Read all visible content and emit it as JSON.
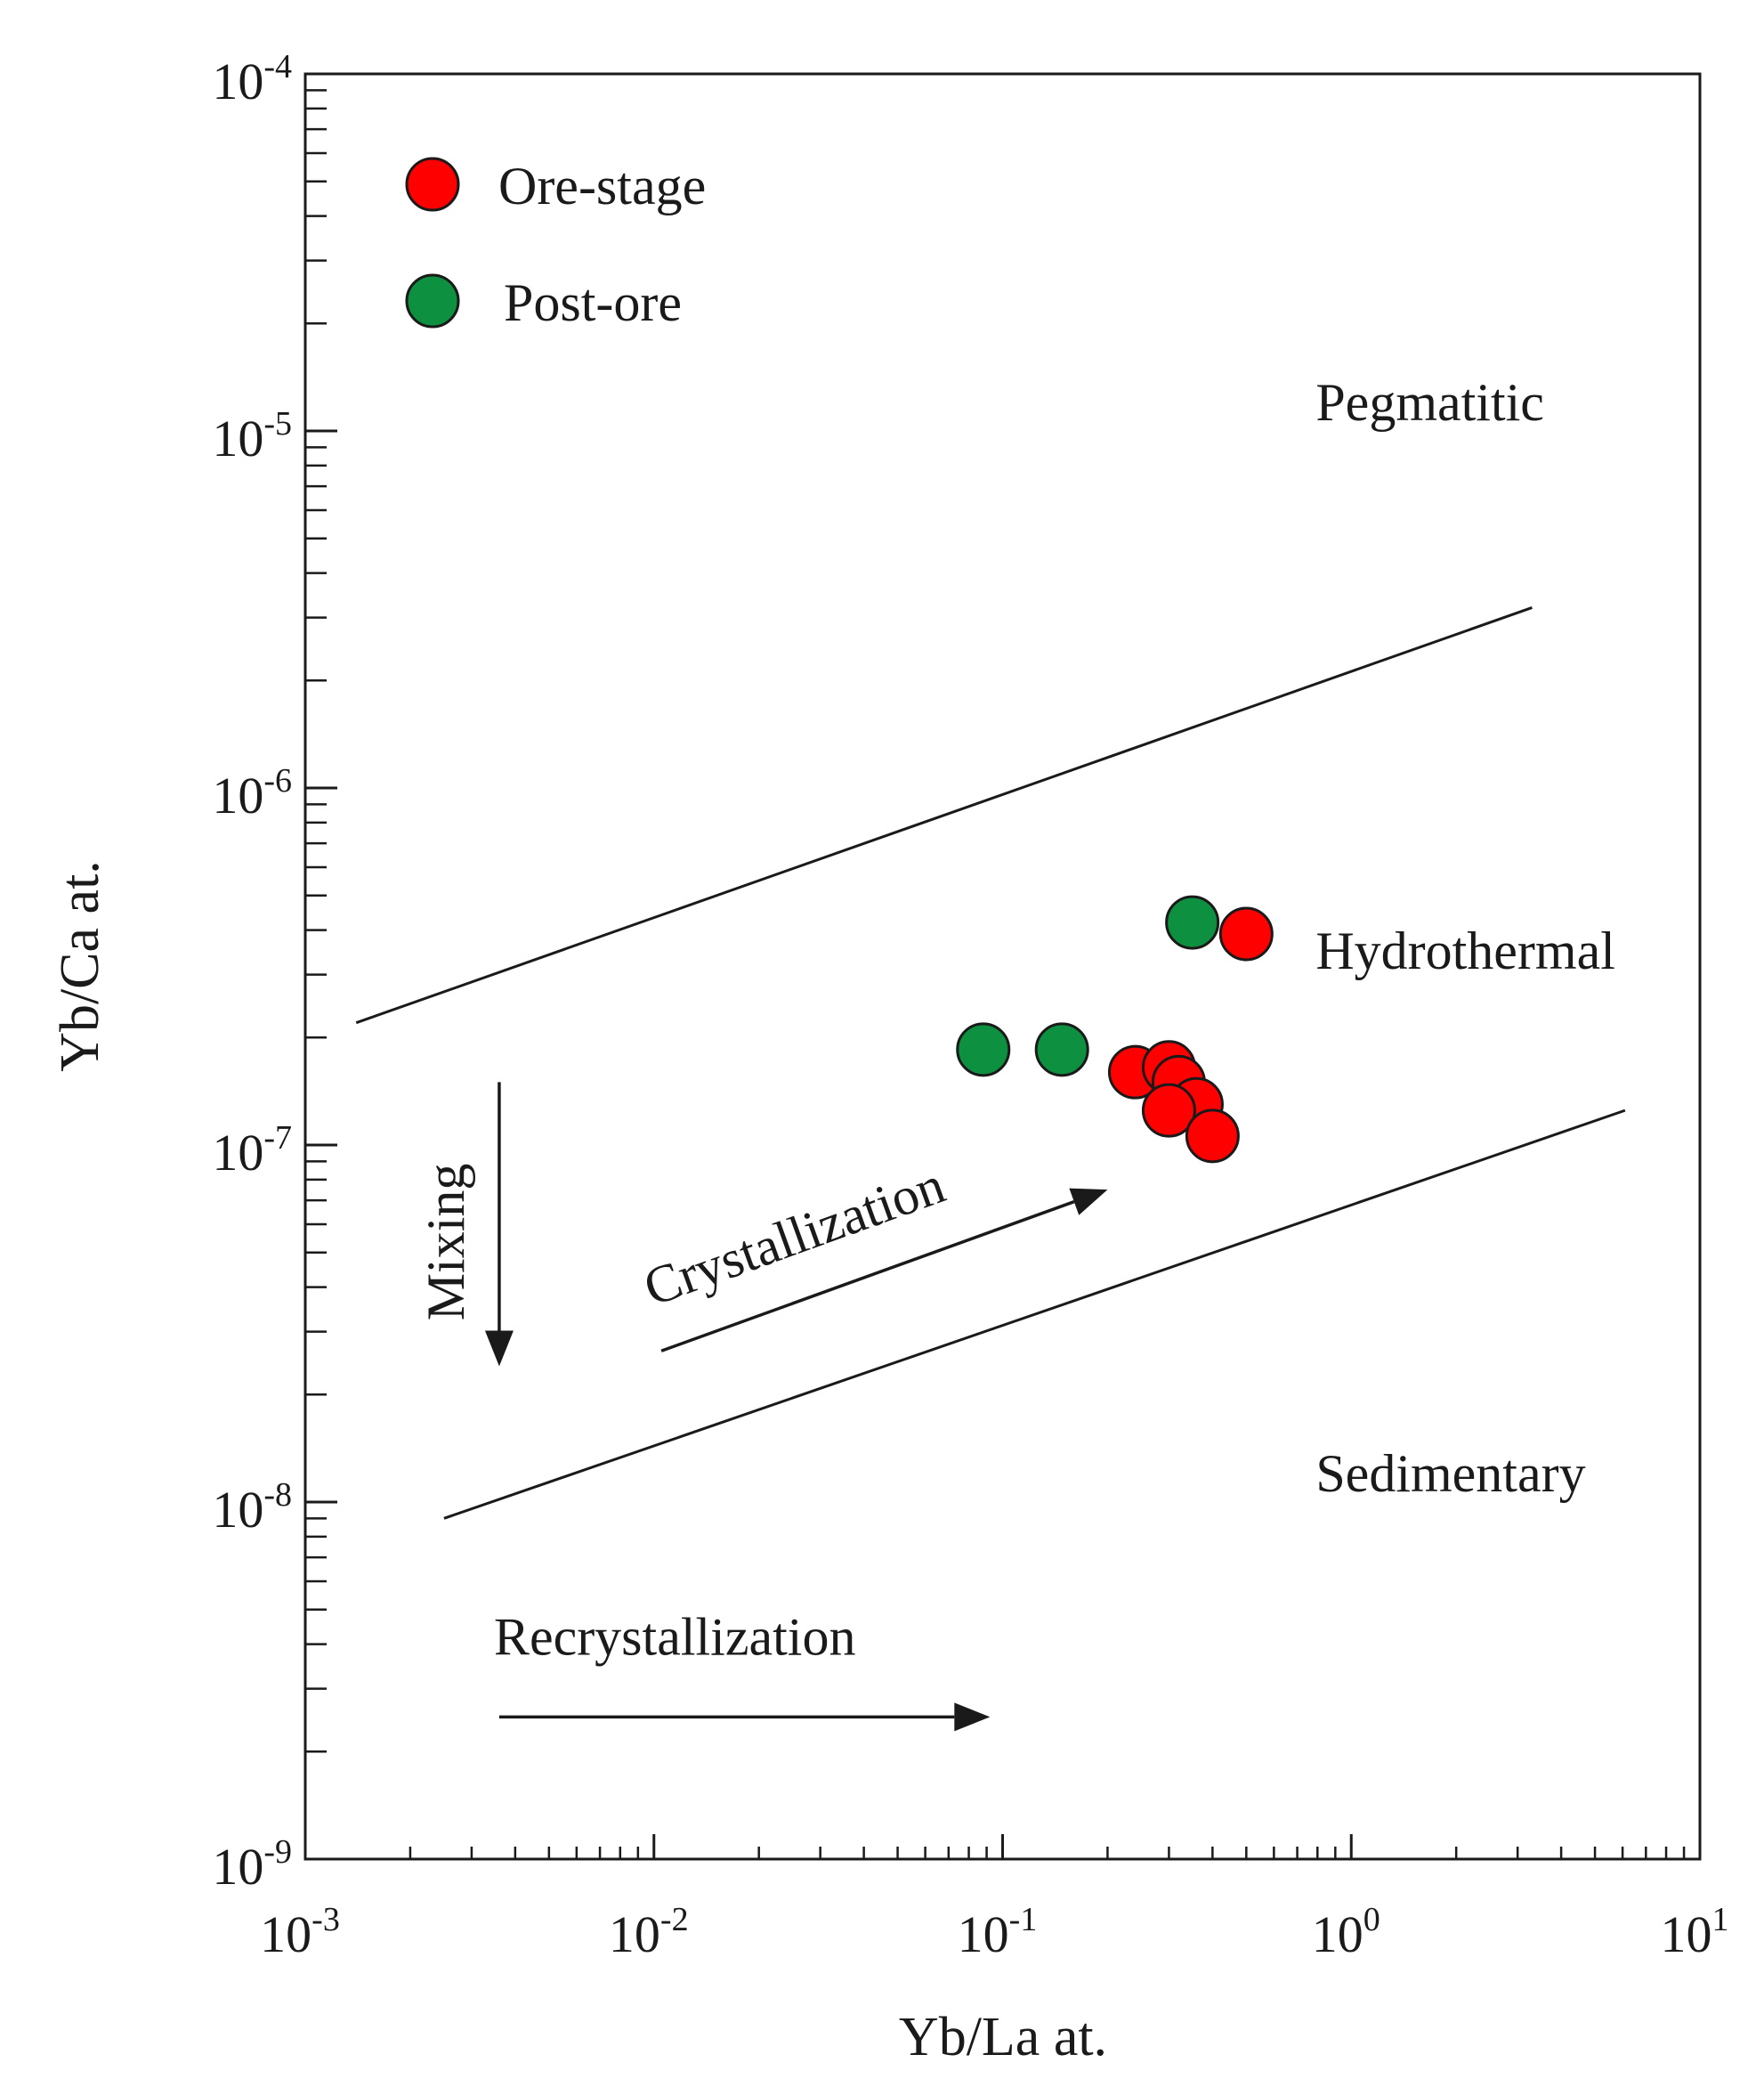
{
  "chart_data": {
    "type": "scatter",
    "title": "",
    "xlabel": "Yb/La at.",
    "ylabel": "Yb/Ca at.",
    "xscale": "log",
    "yscale": "log",
    "xlim": [
      0.001,
      10
    ],
    "ylim": [
      1e-09,
      0.0001
    ],
    "x_ticks": [
      {
        "base": "10",
        "exp": "-3",
        "value": 0.001
      },
      {
        "base": "10",
        "exp": "-2",
        "value": 0.01
      },
      {
        "base": "10",
        "exp": "-1",
        "value": 0.1
      },
      {
        "base": "10",
        "exp": "0",
        "value": 1
      },
      {
        "base": "10",
        "exp": "1",
        "value": 10
      }
    ],
    "y_ticks": [
      {
        "base": "10",
        "exp": "-4",
        "value": 0.0001
      },
      {
        "base": "10",
        "exp": "-5",
        "value": 1e-05
      },
      {
        "base": "10",
        "exp": "-6",
        "value": 1e-06
      },
      {
        "base": "10",
        "exp": "-7",
        "value": 1e-07
      },
      {
        "base": "10",
        "exp": "-8",
        "value": 1e-08
      },
      {
        "base": "10",
        "exp": "-9",
        "value": 1e-09
      }
    ],
    "grid": false,
    "legend_position": "top-left",
    "series": [
      {
        "name": "Ore-stage",
        "color": "#ff0000",
        "points": [
          {
            "x": 0.5,
            "y": 3.9e-07
          },
          {
            "x": 0.24,
            "y": 1.6e-07
          },
          {
            "x": 0.3,
            "y": 1.65e-07
          },
          {
            "x": 0.32,
            "y": 1.5e-07
          },
          {
            "x": 0.36,
            "y": 1.3e-07
          },
          {
            "x": 0.3,
            "y": 1.25e-07
          },
          {
            "x": 0.4,
            "y": 1.06e-07
          }
        ]
      },
      {
        "name": "Post-ore",
        "color": "#0d9140",
        "points": [
          {
            "x": 0.35,
            "y": 4.2e-07
          },
          {
            "x": 0.088,
            "y": 1.85e-07
          },
          {
            "x": 0.148,
            "y": 1.85e-07
          }
        ]
      }
    ],
    "boundary_lines": [
      {
        "name": "Pegmatitic-Hydrothermal boundary",
        "from": {
          "x": 0.0014,
          "y": 2.2e-07
        },
        "to": {
          "x": 3.3,
          "y": 3.2e-06
        }
      },
      {
        "name": "Hydrothermal-Sedimentary boundary",
        "from": {
          "x": 0.0025,
          "y": 9e-09
        },
        "to": {
          "x": 6.1,
          "y": 1.25e-07
        }
      }
    ],
    "regions": [
      {
        "label": "Pegmatitic",
        "x": 0.9,
        "y": 1.2e-05
      },
      {
        "label": "Hydrothermal",
        "x": 0.9,
        "y": 3.5e-07
      },
      {
        "label": "Sedimentary",
        "x": 0.9,
        "y": 1.2e-08
      }
    ],
    "trend_arrows": [
      {
        "label": "Mixing",
        "from": {
          "x": 0.0036,
          "y": 1.5e-07
        },
        "to": {
          "x": 0.0036,
          "y": 2.4e-08
        }
      },
      {
        "label": "Crystallization",
        "from": {
          "x": 0.0105,
          "y": 2.65e-08
        },
        "to": {
          "x": 0.2,
          "y": 7.5e-08
        }
      },
      {
        "label": "Recrystallization",
        "from": {
          "x": 0.0036,
          "y": 2.5e-09
        },
        "to": {
          "x": 0.092,
          "y": 2.5e-09
        }
      }
    ]
  }
}
